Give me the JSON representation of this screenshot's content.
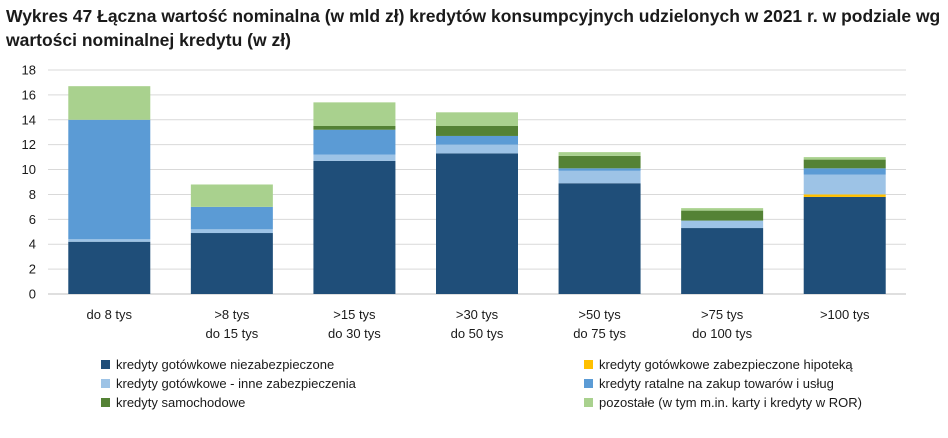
{
  "title": "Wykres 47 Łączna wartość nominalna (w mld zł) kredytów konsumpcyjnych udzielonych w 2021 r. w podziale wg wartości nominalnej kredytu (w zł)",
  "chart_data": {
    "type": "bar",
    "stacked": true,
    "title": "Wykres 47 Łączna wartość nominalna (w mld zł) kredytów konsumpcyjnych udzielonych w 2021 r. w podziale wg wartości nominalnej kredytu (w zł)",
    "xlabel": "",
    "ylabel": "",
    "ylim": [
      0,
      18
    ],
    "yticks": [
      "0",
      "2",
      "4",
      "6",
      "8",
      "10",
      "12",
      "14",
      "16",
      "18"
    ],
    "grid": true,
    "legend_position": "bottom",
    "categories": [
      [
        "do 8 tys"
      ],
      [
        ">8 tys",
        "do 15 tys"
      ],
      [
        ">15 tys",
        "do 30 tys"
      ],
      [
        ">30 tys",
        "do 50 tys"
      ],
      [
        ">50 tys",
        "do 75 tys"
      ],
      [
        ">75 tys",
        "do 100 tys"
      ],
      [
        ">100 tys"
      ]
    ],
    "series": [
      {
        "name": "kredyty gotówkowe niezabezpieczone",
        "color": "#1f4e79",
        "values": [
          4.2,
          4.9,
          10.7,
          11.3,
          8.9,
          5.3,
          7.8
        ]
      },
      {
        "name": "kredyty gotówkowe zabezpieczone hipoteką",
        "color": "#ffc000",
        "values": [
          0.0,
          0.0,
          0.0,
          0.0,
          0.0,
          0.0,
          0.2
        ]
      },
      {
        "name": "kredyty gotówkowe - inne zabezpieczenia",
        "color": "#9dc3e6",
        "values": [
          0.2,
          0.3,
          0.5,
          0.7,
          1.0,
          0.6,
          1.6
        ]
      },
      {
        "name": "kredyty ratalne na zakup towarów i usług",
        "color": "#5b9bd5",
        "values": [
          9.6,
          1.8,
          2.0,
          0.7,
          0.2,
          0.0,
          0.5
        ]
      },
      {
        "name": "kredyty samochodowe",
        "color": "#548235",
        "values": [
          0.0,
          0.0,
          0.3,
          0.8,
          1.0,
          0.8,
          0.7
        ]
      },
      {
        "name": "pozostałe (w tym m.in. karty i kredyty w ROR)",
        "color": "#a9d18e",
        "values": [
          2.7,
          1.8,
          1.9,
          1.1,
          0.3,
          0.2,
          0.2
        ]
      }
    ]
  }
}
